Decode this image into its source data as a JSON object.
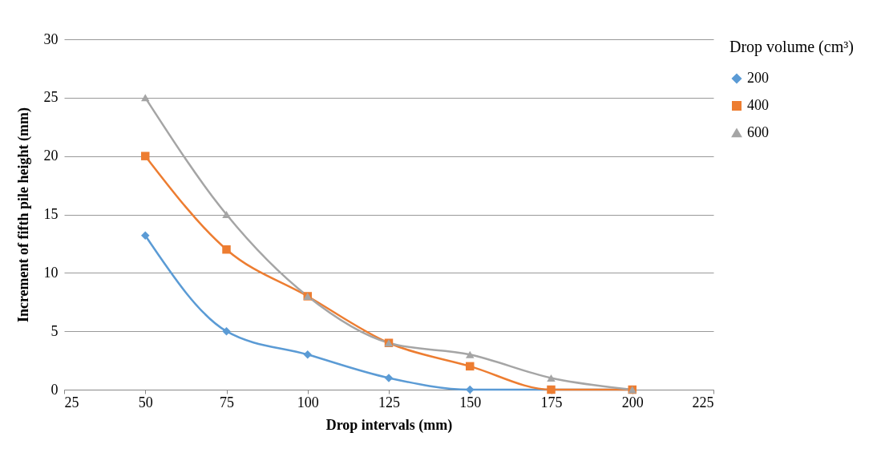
{
  "chart_data": {
    "type": "line",
    "xlabel": "Drop intervals (mm)",
    "ylabel": "Increment  of fifth pile height (mm)",
    "legend_title": "Drop volume (cm³)",
    "x": [
      50,
      75,
      100,
      125,
      150,
      175,
      200
    ],
    "series": [
      {
        "name": "200",
        "color": "#5b9bd5",
        "marker": "diamond",
        "values": [
          13.2,
          5,
          3,
          1,
          0,
          0,
          0
        ]
      },
      {
        "name": "400",
        "color": "#ed7d31",
        "marker": "square",
        "values": [
          20,
          12,
          8,
          4,
          2,
          0,
          0
        ]
      },
      {
        "name": "600",
        "color": "#a5a5a5",
        "marker": "triangle",
        "values": [
          25,
          15,
          8,
          4,
          3,
          1,
          0
        ]
      }
    ],
    "xlim": [
      25,
      225
    ],
    "xticks": [
      25,
      50,
      75,
      100,
      125,
      150,
      175,
      200,
      225
    ],
    "ylim": [
      0,
      30
    ],
    "yticks": [
      0,
      5,
      10,
      15,
      20,
      25,
      30
    ],
    "grid": "y",
    "legend": "right",
    "line_style": "solid"
  }
}
